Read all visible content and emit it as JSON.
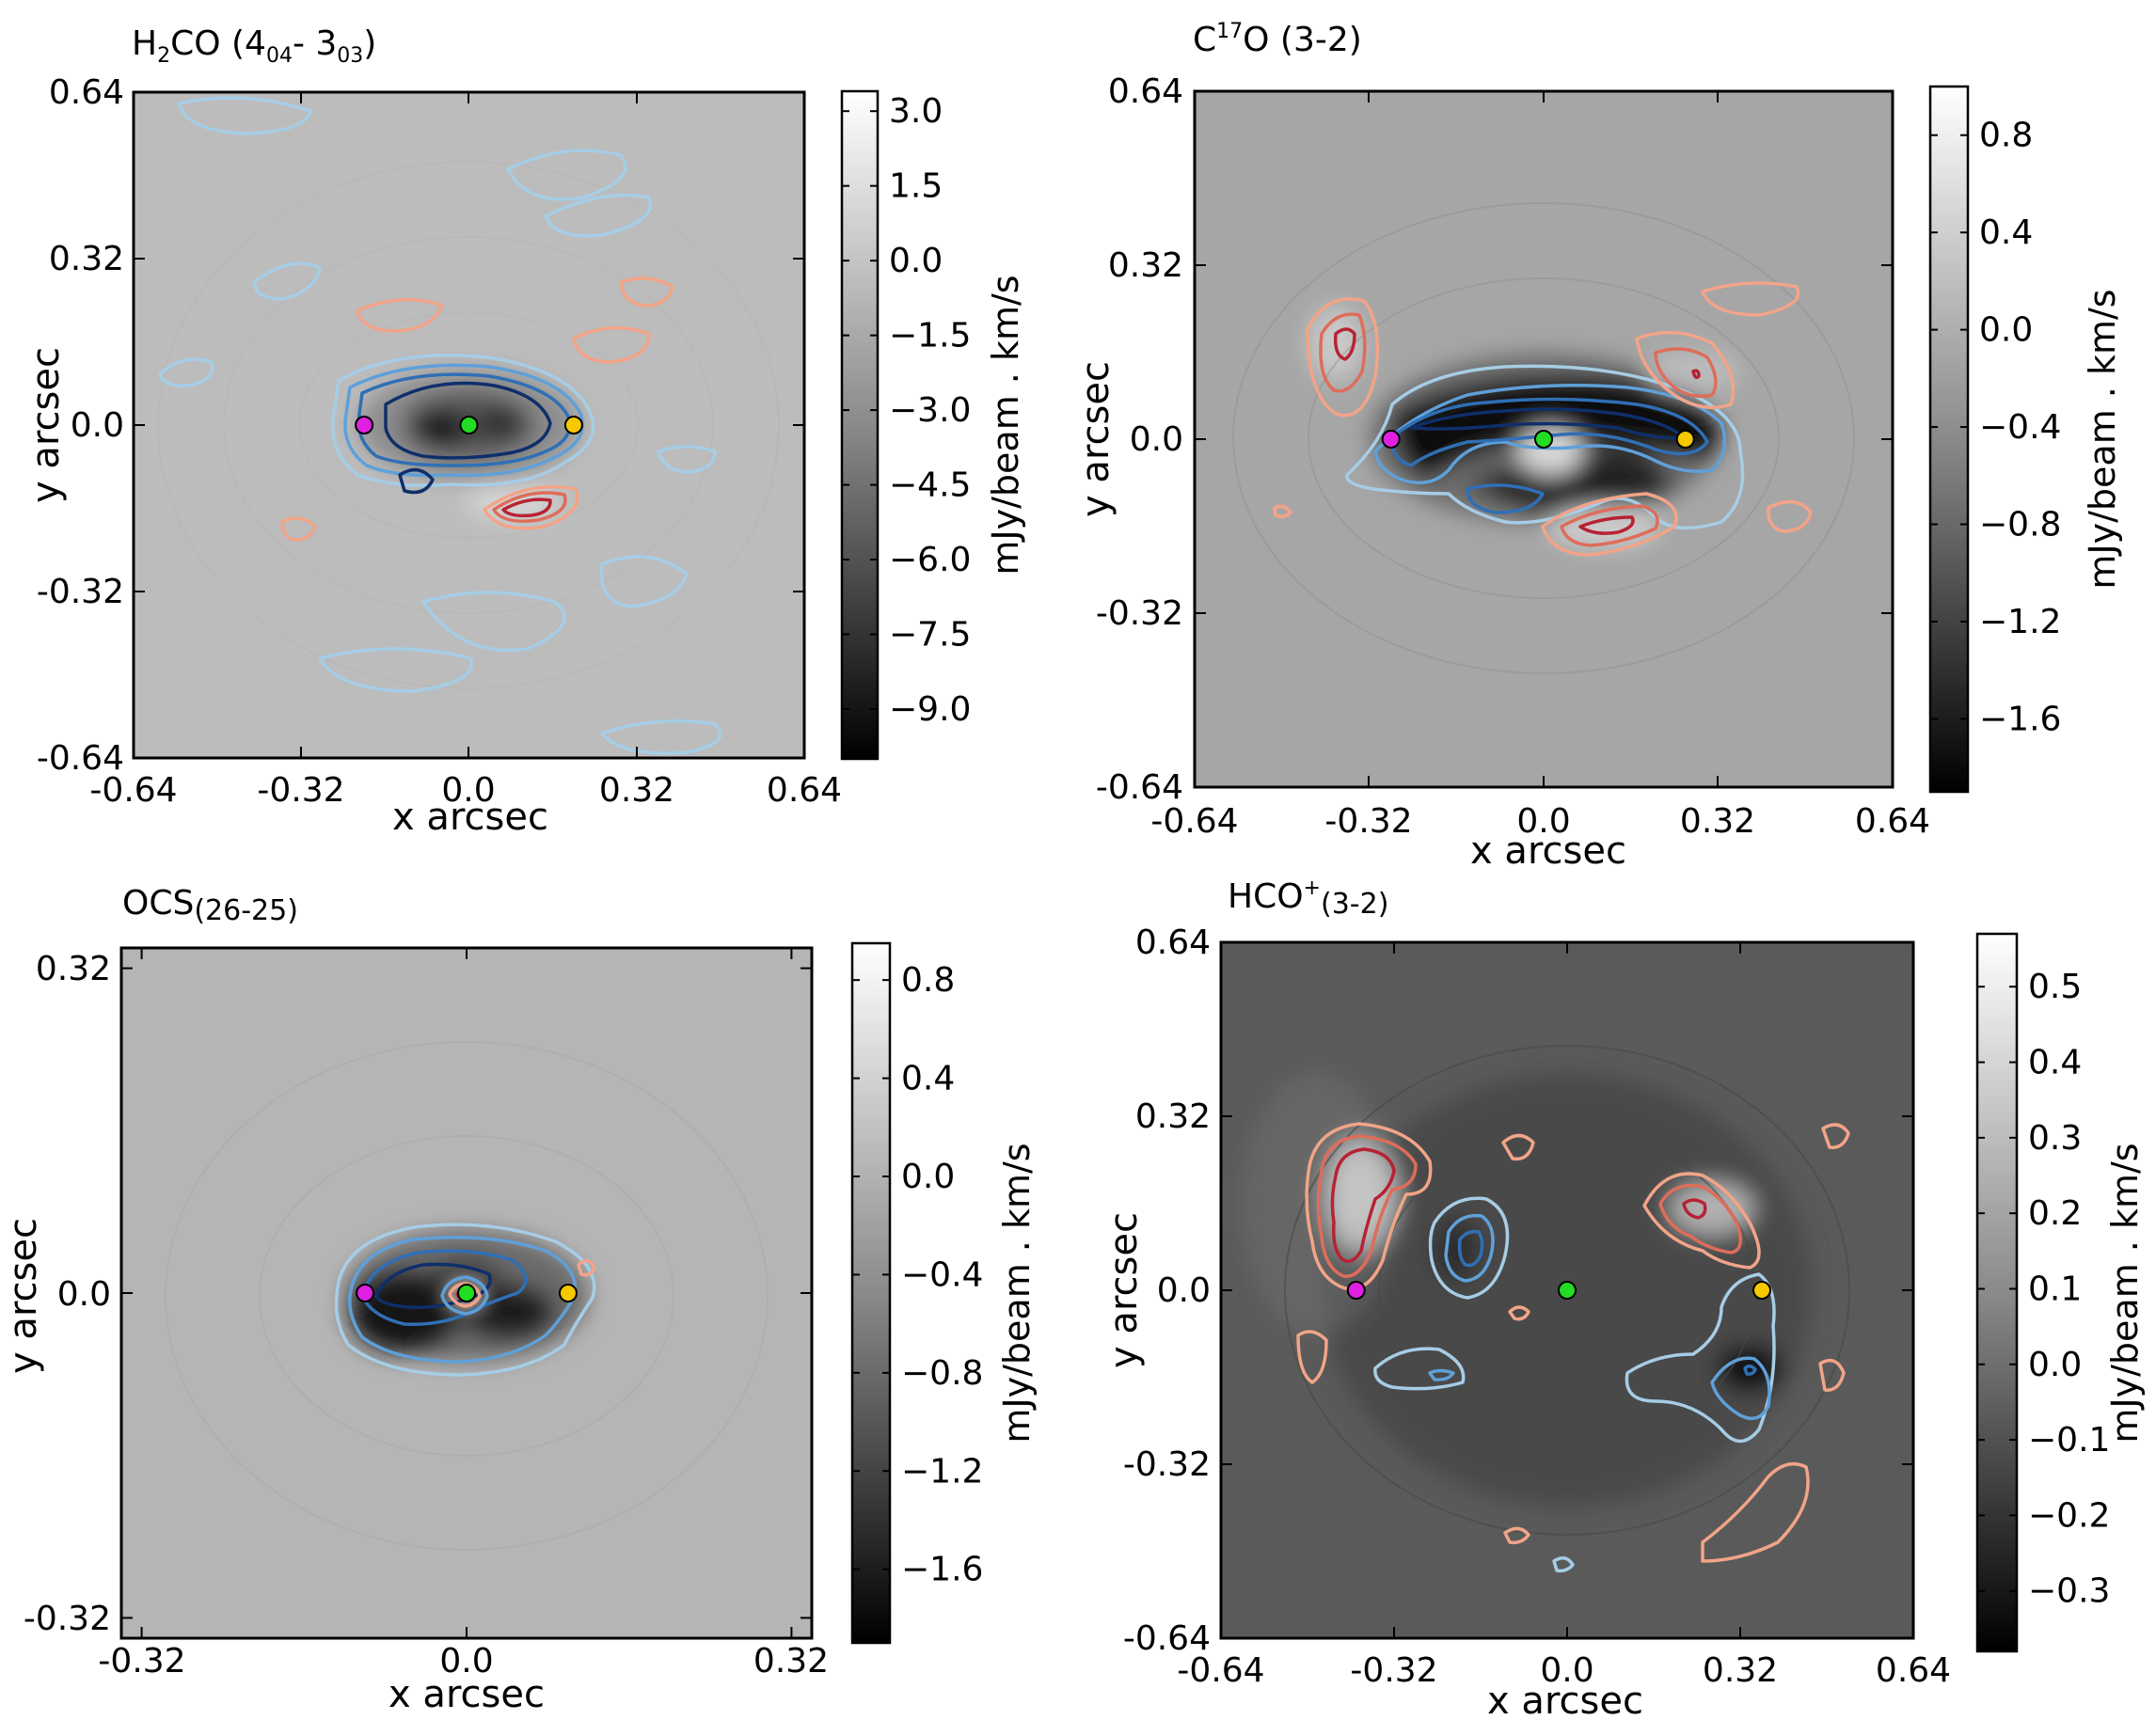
{
  "chart_data": [
    {
      "type": "heatmap",
      "title": {
        "main": "H",
        "sub1": "2",
        "mid": "CO (4",
        "sub2": "04",
        "mid2": "- 3",
        "sub3": "03",
        "end": ")"
      },
      "xlabel": "x arcsec",
      "ylabel": "y arcsec",
      "xlim": [
        -0.64,
        0.64
      ],
      "ylim": [
        -0.64,
        0.64
      ],
      "xticks": [
        "-0.64",
        "-0.32",
        "0.0",
        "0.32",
        "0.64"
      ],
      "yticks": [
        "0.64",
        "0.32",
        "0.0",
        "-0.32",
        "-0.64"
      ],
      "colorbar": {
        "label": "mJy/beam . km/s",
        "range": [
          -10.0,
          3.4
        ],
        "ticks": [
          "3.0",
          "1.5",
          "0.0",
          "−1.5",
          "−3.0",
          "−4.5",
          "−6.0",
          "−7.5",
          "−9.0"
        ],
        "tick_values": [
          3.0,
          1.5,
          0.0,
          -1.5,
          -3.0,
          -4.5,
          -6.0,
          -7.5,
          -9.0
        ]
      },
      "markers": [
        {
          "name": "magenta",
          "color": "#e020e0",
          "x": -0.2,
          "y": 0.0
        },
        {
          "name": "green",
          "color": "#22dd22",
          "x": 0.0,
          "y": 0.0
        },
        {
          "name": "yellow",
          "color": "#f5c800",
          "x": 0.2,
          "y": 0.0
        }
      ]
    },
    {
      "type": "heatmap",
      "title": {
        "main": "C",
        "sup": "17",
        "end": "O (3-2)"
      },
      "xlabel": "x arcsec",
      "ylabel": "y arcsec",
      "xlim": [
        -0.64,
        0.64
      ],
      "ylim": [
        -0.64,
        0.64
      ],
      "xticks": [
        "-0.64",
        "-0.32",
        "0.0",
        "0.32",
        "0.64"
      ],
      "yticks": [
        "0.64",
        "0.32",
        "0.0",
        "-0.32",
        "-0.64"
      ],
      "colorbar": {
        "label": "mJy/beam . km/s",
        "range": [
          -1.9,
          1.0
        ],
        "ticks": [
          "0.8",
          "0.4",
          "0.0",
          "−0.4",
          "−0.8",
          "−1.2",
          "−1.6"
        ],
        "tick_values": [
          0.8,
          0.4,
          0.0,
          -0.4,
          -0.8,
          -1.2,
          -1.6
        ]
      },
      "markers": [
        {
          "name": "magenta",
          "color": "#e020e0",
          "x": -0.28,
          "y": 0.0
        },
        {
          "name": "green",
          "color": "#22dd22",
          "x": 0.0,
          "y": 0.0
        },
        {
          "name": "yellow",
          "color": "#f5c800",
          "x": 0.26,
          "y": 0.0
        }
      ]
    },
    {
      "type": "heatmap",
      "title": {
        "main": "OCS",
        "end": "(26-25)"
      },
      "xlabel": "x arcsec",
      "ylabel": "y arcsec",
      "xlim": [
        -0.34,
        0.34
      ],
      "ylim": [
        -0.34,
        0.34
      ],
      "xticks": [
        "-0.32",
        "0.0",
        "0.32"
      ],
      "xtick_values": [
        -0.32,
        0.0,
        0.32
      ],
      "yticks": [
        "0.32",
        "0.0",
        "-0.32"
      ],
      "ytick_values": [
        0.32,
        0.0,
        -0.32
      ],
      "colorbar": {
        "label": "mJy/beam . km/s",
        "range": [
          -1.9,
          0.95
        ],
        "ticks": [
          "0.8",
          "0.4",
          "0.0",
          "−0.4",
          "−0.8",
          "−1.2",
          "−1.6"
        ],
        "tick_values": [
          0.8,
          0.4,
          0.0,
          -0.4,
          -0.8,
          -1.2,
          -1.6
        ]
      },
      "markers": [
        {
          "name": "magenta",
          "color": "#e020e0",
          "x": -0.1,
          "y": 0.0
        },
        {
          "name": "green",
          "color": "#22dd22",
          "x": 0.0,
          "y": 0.0
        },
        {
          "name": "yellow",
          "color": "#f5c800",
          "x": 0.1,
          "y": 0.0
        }
      ]
    },
    {
      "type": "heatmap",
      "title": {
        "main": "HCO",
        "sup": "+",
        "end": "(3-2)"
      },
      "xlabel": "x arcsec",
      "ylabel": "y arcsec",
      "xlim": [
        -0.64,
        0.64
      ],
      "ylim": [
        -0.64,
        0.64
      ],
      "xticks": [
        "-0.64",
        "-0.32",
        "0.0",
        "0.32",
        "0.64"
      ],
      "yticks": [
        "0.64",
        "0.32",
        "0.0",
        "-0.32",
        "-0.64"
      ],
      "colorbar": {
        "label": "mJy/beam . km/s",
        "range": [
          -0.38,
          0.57
        ],
        "ticks": [
          "0.5",
          "0.4",
          "0.3",
          "0.2",
          "0.1",
          "0.0",
          "−0.1",
          "−0.2",
          "−0.3"
        ],
        "tick_values": [
          0.5,
          0.4,
          0.3,
          0.2,
          0.1,
          0.0,
          -0.1,
          -0.2,
          -0.3
        ]
      },
      "markers": [
        {
          "name": "magenta",
          "color": "#e020e0",
          "x": -0.39,
          "y": 0.0
        },
        {
          "name": "green",
          "color": "#22dd22",
          "x": 0.0,
          "y": 0.0
        },
        {
          "name": "yellow",
          "color": "#f5c800",
          "x": 0.36,
          "y": 0.0
        }
      ]
    }
  ]
}
